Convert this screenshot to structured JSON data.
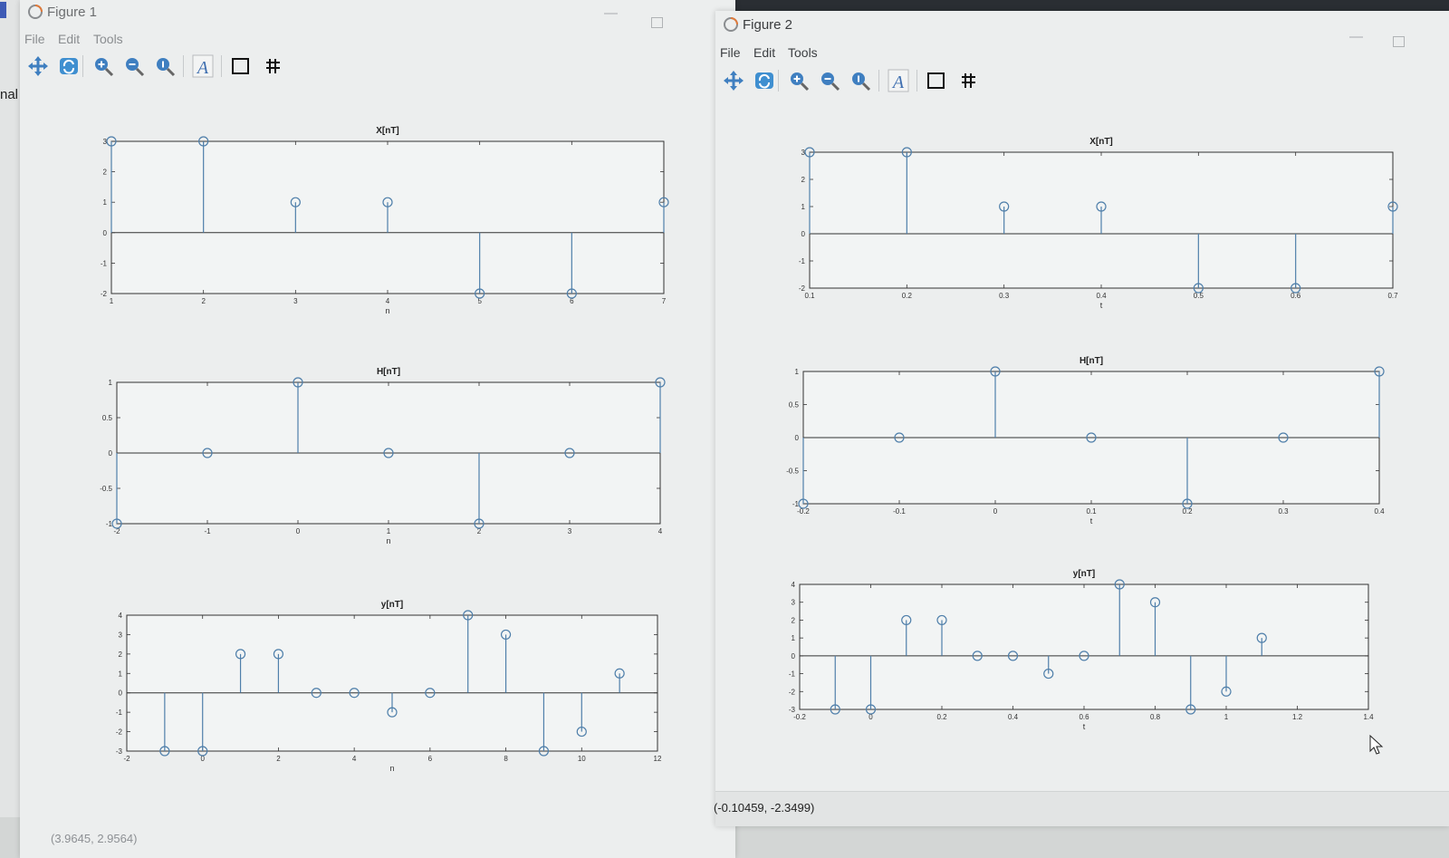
{
  "background": {
    "left_window_fragment": "nal"
  },
  "figure1": {
    "title": "Figure 1",
    "menu": [
      "File",
      "Edit",
      "Tools"
    ],
    "toolbar": [
      "pan-icon",
      "rotate-icon",
      "zoom-in-icon",
      "zoom-out-icon",
      "zoom-reset-icon",
      "text-icon",
      "box-icon",
      "grid-icon"
    ],
    "status": "(3.9645, 2.9564)",
    "plots": [
      {
        "title": "X[nT]",
        "xlabel": "n",
        "xlim": [
          1,
          7
        ],
        "ylim": [
          -2,
          3
        ],
        "xticks": [
          "1",
          "2",
          "3",
          "4",
          "5",
          "6",
          "7"
        ],
        "yticks": [
          "-2",
          "-1",
          "0",
          "1",
          "2",
          "3"
        ],
        "x": [
          1,
          2,
          3,
          4,
          5,
          6,
          7
        ],
        "y": [
          3,
          3,
          1,
          1,
          -2,
          -2,
          1
        ]
      },
      {
        "title": "H[nT]",
        "xlabel": "n",
        "xlim": [
          -2,
          4
        ],
        "ylim": [
          -1,
          1
        ],
        "xticks": [
          "-2",
          "-1",
          "0",
          "1",
          "2",
          "3",
          "4"
        ],
        "yticks": [
          "-1",
          "-0.5",
          "0",
          "0.5",
          "1"
        ],
        "x": [
          -2,
          -1,
          0,
          1,
          2,
          3,
          4
        ],
        "y": [
          -1,
          0,
          1,
          0,
          -1,
          0,
          1
        ]
      },
      {
        "title": "y[nT]",
        "xlabel": "n",
        "xlim": [
          -2,
          12
        ],
        "ylim": [
          -3,
          4
        ],
        "xticks": [
          "-2",
          "0",
          "2",
          "4",
          "6",
          "8",
          "10",
          "12"
        ],
        "yticks": [
          "-3",
          "-2",
          "-1",
          "0",
          "1",
          "2",
          "3",
          "4"
        ],
        "x": [
          -1,
          0,
          1,
          2,
          3,
          4,
          5,
          6,
          7,
          8,
          9,
          10,
          11
        ],
        "y": [
          -3,
          -3,
          2,
          2,
          0,
          0,
          -1,
          0,
          4,
          3,
          -3,
          -2,
          1
        ]
      }
    ]
  },
  "figure2": {
    "title": "Figure 2",
    "menu": [
      "File",
      "Edit",
      "Tools"
    ],
    "toolbar": [
      "pan-icon",
      "rotate-icon",
      "zoom-in-icon",
      "zoom-out-icon",
      "zoom-reset-icon",
      "text-icon",
      "box-icon",
      "grid-icon"
    ],
    "status": "(-0.10459, -2.3499)",
    "plots": [
      {
        "title": "X[nT]",
        "xlabel": "t",
        "xlim": [
          0.1,
          0.7
        ],
        "ylim": [
          -2,
          3
        ],
        "xticks": [
          "0.1",
          "0.2",
          "0.3",
          "0.4",
          "0.5",
          "0.6",
          "0.7"
        ],
        "yticks": [
          "-2",
          "-1",
          "0",
          "1",
          "2",
          "3"
        ],
        "x": [
          0.1,
          0.2,
          0.3,
          0.4,
          0.5,
          0.6,
          0.7
        ],
        "y": [
          3,
          3,
          1,
          1,
          -2,
          -2,
          1
        ]
      },
      {
        "title": "H[nT]",
        "xlabel": "t",
        "xlim": [
          -0.2,
          0.4
        ],
        "ylim": [
          -1,
          1
        ],
        "xticks": [
          "-0.2",
          "-0.1",
          "0",
          "0.1",
          "0.2",
          "0.3",
          "0.4"
        ],
        "yticks": [
          "-1",
          "-0.5",
          "0",
          "0.5",
          "1"
        ],
        "x": [
          -0.2,
          -0.1,
          0,
          0.1,
          0.2,
          0.3,
          0.4
        ],
        "y": [
          -1,
          0,
          1,
          0,
          -1,
          0,
          1
        ]
      },
      {
        "title": "y[nT]",
        "xlabel": "t",
        "xlim": [
          -0.2,
          1.4
        ],
        "ylim": [
          -3,
          4
        ],
        "xticks": [
          "-0.2",
          "0",
          "0.2",
          "0.4",
          "0.6",
          "0.8",
          "1",
          "1.2",
          "1.4"
        ],
        "yticks": [
          "-3",
          "-2",
          "-1",
          "0",
          "1",
          "2",
          "3",
          "4"
        ],
        "x": [
          -0.1,
          0,
          0.1,
          0.2,
          0.3,
          0.4,
          0.5,
          0.6,
          0.7,
          0.8,
          0.9,
          1.0,
          1.1
        ],
        "y": [
          -3,
          -3,
          2,
          2,
          0,
          0,
          -1,
          0,
          4,
          3,
          -3,
          -2,
          1
        ]
      }
    ]
  },
  "chart_data": [
    {
      "type": "scatter",
      "title": "X[nT]",
      "xlabel": "n",
      "ylabel": "",
      "xlim": [
        1,
        7
      ],
      "ylim": [
        -2,
        3
      ],
      "series": [
        {
          "x": [
            1,
            2,
            3,
            4,
            5,
            6,
            7
          ],
          "y": [
            3,
            3,
            1,
            1,
            -2,
            -2,
            1
          ]
        }
      ]
    },
    {
      "type": "scatter",
      "title": "H[nT]",
      "xlabel": "n",
      "ylabel": "",
      "xlim": [
        -2,
        4
      ],
      "ylim": [
        -1,
        1
      ],
      "series": [
        {
          "x": [
            -2,
            -1,
            0,
            1,
            2,
            3,
            4
          ],
          "y": [
            -1,
            0,
            1,
            0,
            -1,
            0,
            1
          ]
        }
      ]
    },
    {
      "type": "scatter",
      "title": "y[nT]",
      "xlabel": "n",
      "ylabel": "",
      "xlim": [
        -2,
        12
      ],
      "ylim": [
        -3,
        4
      ],
      "series": [
        {
          "x": [
            -1,
            0,
            1,
            2,
            3,
            4,
            5,
            6,
            7,
            8,
            9,
            10,
            11
          ],
          "y": [
            -3,
            -3,
            2,
            2,
            0,
            0,
            -1,
            0,
            4,
            3,
            -3,
            -2,
            1
          ]
        }
      ]
    },
    {
      "type": "scatter",
      "title": "X[nT]",
      "xlabel": "t",
      "ylabel": "",
      "xlim": [
        0.1,
        0.7
      ],
      "ylim": [
        -2,
        3
      ],
      "series": [
        {
          "x": [
            0.1,
            0.2,
            0.3,
            0.4,
            0.5,
            0.6,
            0.7
          ],
          "y": [
            3,
            3,
            1,
            1,
            -2,
            -2,
            1
          ]
        }
      ]
    },
    {
      "type": "scatter",
      "title": "H[nT]",
      "xlabel": "t",
      "ylabel": "",
      "xlim": [
        -0.2,
        0.4
      ],
      "ylim": [
        -1,
        1
      ],
      "series": [
        {
          "x": [
            -0.2,
            -0.1,
            0,
            0.1,
            0.2,
            0.3,
            0.4
          ],
          "y": [
            -1,
            0,
            1,
            0,
            -1,
            0,
            1
          ]
        }
      ]
    },
    {
      "type": "scatter",
      "title": "y[nT]",
      "xlabel": "t",
      "ylabel": "",
      "xlim": [
        -0.2,
        1.4
      ],
      "ylim": [
        -3,
        4
      ],
      "series": [
        {
          "x": [
            -0.1,
            0,
            0.1,
            0.2,
            0.3,
            0.4,
            0.5,
            0.6,
            0.7,
            0.8,
            0.9,
            1.0,
            1.1
          ],
          "y": [
            -3,
            -3,
            2,
            2,
            0,
            0,
            -1,
            0,
            4,
            3,
            -3,
            -2,
            1
          ]
        }
      ]
    }
  ],
  "colors": {
    "stem": "#4f7faa",
    "axes": "#333333",
    "window_bg": "#eceeee"
  }
}
